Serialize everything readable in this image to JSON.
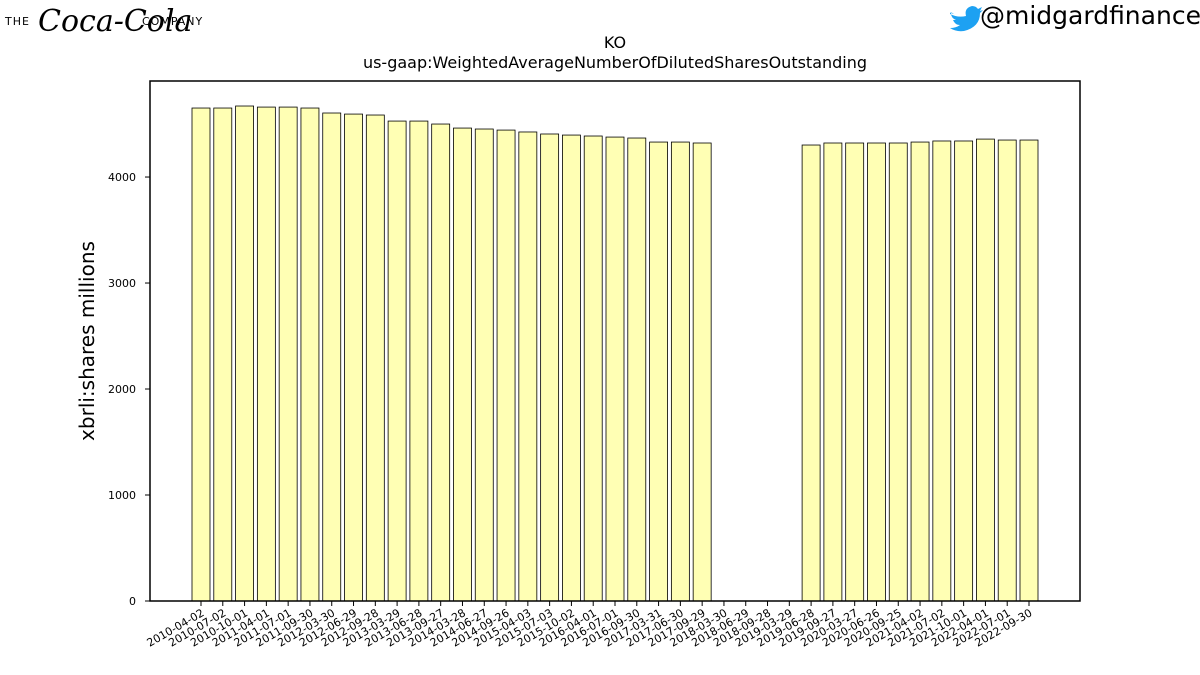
{
  "header": {
    "logo_prefix": "THE",
    "logo_brand": "Coca-Cola",
    "logo_suffix": "COMPANY",
    "handle": "@midgardfinance"
  },
  "chart_data": {
    "type": "bar",
    "title": "KO",
    "subtitle": "us-gaap:WeightedAverageNumberOfDilutedSharesOutstanding",
    "y_label": "xbrli:shares millions",
    "color": "#ffffb4",
    "edgecolor": "#000000",
    "categories": [
      "2010-04-02",
      "2010-07-02",
      "2010-10-01",
      "2011-04-01",
      "2011-07-01",
      "2011-09-30",
      "2012-03-30",
      "2012-06-29",
      "2012-09-28",
      "2013-03-29",
      "2013-06-28",
      "2013-09-27",
      "2014-03-28",
      "2014-06-27",
      "2014-09-26",
      "2015-04-03",
      "2015-07-03",
      "2015-10-02",
      "2016-04-01",
      "2016-07-01",
      "2016-09-30",
      "2017-03-31",
      "2017-06-30",
      "2017-09-29",
      "2018-03-30",
      "2018-06-29",
      "2018-09-28",
      "2019-03-29",
      "2019-06-28",
      "2019-09-27",
      "2020-03-27",
      "2020-06-26",
      "2020-09-25",
      "2021-04-02",
      "2021-07-02",
      "2021-10-01",
      "2022-04-01",
      "2022-07-01",
      "2022-09-30"
    ],
    "values": [
      4651,
      4651,
      4670,
      4660,
      4660,
      4651,
      4604,
      4594,
      4585,
      4528,
      4528,
      4500,
      4462,
      4453,
      4443,
      4425,
      4406,
      4396,
      4387,
      4377,
      4368,
      4330,
      4330,
      4321,
      null,
      null,
      null,
      null,
      4302,
      4321,
      4321,
      4321,
      4321,
      4330,
      4340,
      4340,
      4358,
      4349,
      4349
    ],
    "ylim": [
      0,
      4906
    ],
    "yticks": [
      0,
      1000,
      2000,
      3000,
      4000
    ]
  }
}
